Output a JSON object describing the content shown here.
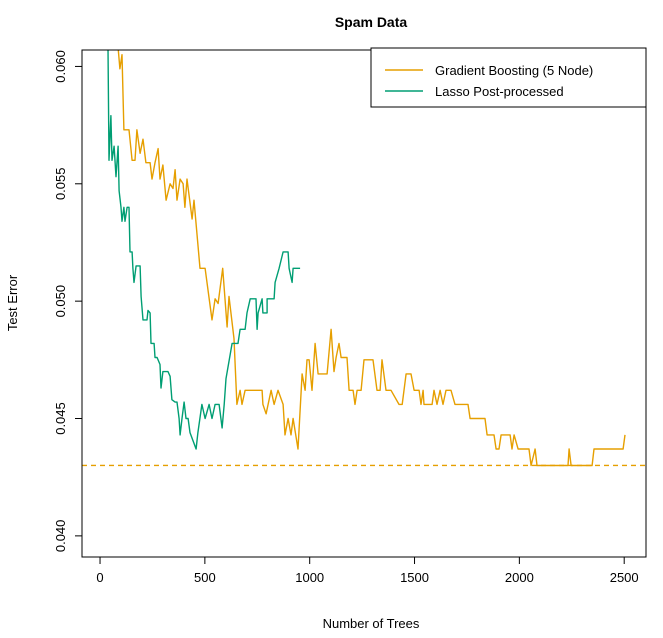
{
  "chart_data": {
    "type": "line",
    "title": "Spam Data",
    "xlabel": "Number of Trees",
    "ylabel": "Test Error",
    "xlim": [
      -86,
      2604
    ],
    "ylim": [
      0.0391,
      0.0607
    ],
    "xticks": [
      0,
      500,
      1000,
      1500,
      2000,
      2500
    ],
    "xtick_labels": [
      "0",
      "500",
      "1000",
      "1500",
      "2000",
      "2500"
    ],
    "yticks": [
      0.04,
      0.045,
      0.05,
      0.055,
      0.06
    ],
    "ytick_labels": [
      "0.040",
      "0.045",
      "0.050",
      "0.055",
      "0.060"
    ],
    "grid": false,
    "legend_position": "top-right",
    "hline": {
      "y": 0.043,
      "color": "#E69F00",
      "style": "dashed"
    },
    "series": [
      {
        "name": "Gradient Boosting (5 Node)",
        "color": "#E69F00",
        "x": [
          86,
          95,
          105,
          114,
          138,
          153,
          167,
          176,
          191,
          205,
          219,
          239,
          248,
          262,
          277,
          286,
          300,
          315,
          334,
          348,
          358,
          367,
          382,
          396,
          405,
          415,
          439,
          448,
          477,
          501,
          534,
          549,
          563,
          585,
          606,
          615,
          639,
          653,
          668,
          677,
          692,
          720,
          773,
          777,
          792,
          816,
          830,
          849,
          873,
          882,
          897,
          911,
          921,
          944,
          964,
          978,
          987,
          997,
          1011,
          1026,
          1040,
          1083,
          1102,
          1116,
          1126,
          1140,
          1150,
          1178,
          1188,
          1207,
          1216,
          1226,
          1245,
          1259,
          1302,
          1321,
          1336,
          1345,
          1364,
          1388,
          1426,
          1441,
          1460,
          1483,
          1498,
          1522,
          1531,
          1541,
          1545,
          1584,
          1593,
          1607,
          1622,
          1636,
          1650,
          1674,
          1693,
          1755,
          1765,
          1836,
          1846,
          1879,
          1889,
          1903,
          1913,
          1956,
          1965,
          1975,
          1994,
          2046,
          2056,
          2075,
          2084,
          2232,
          2237,
          2247,
          2347,
          2356,
          2495,
          2504
        ],
        "y": [
          0.0608,
          0.0599,
          0.0605,
          0.0573,
          0.0573,
          0.056,
          0.056,
          0.0573,
          0.0563,
          0.0569,
          0.0559,
          0.0559,
          0.0552,
          0.0559,
          0.0565,
          0.0552,
          0.0558,
          0.0543,
          0.055,
          0.0548,
          0.0556,
          0.0543,
          0.0552,
          0.055,
          0.054,
          0.0552,
          0.0535,
          0.0543,
          0.0514,
          0.0514,
          0.0492,
          0.0501,
          0.0499,
          0.0514,
          0.0489,
          0.0502,
          0.0484,
          0.0456,
          0.0462,
          0.0456,
          0.0462,
          0.0462,
          0.0462,
          0.0456,
          0.0452,
          0.0462,
          0.0456,
          0.0462,
          0.0456,
          0.0443,
          0.045,
          0.0443,
          0.045,
          0.0437,
          0.0469,
          0.0462,
          0.0475,
          0.0475,
          0.0462,
          0.0482,
          0.0469,
          0.0469,
          0.0488,
          0.047,
          0.0476,
          0.0482,
          0.0476,
          0.0476,
          0.0462,
          0.0462,
          0.0456,
          0.0462,
          0.0462,
          0.0475,
          0.0475,
          0.0462,
          0.0462,
          0.0475,
          0.0462,
          0.0462,
          0.0456,
          0.0456,
          0.0469,
          0.0469,
          0.0462,
          0.0462,
          0.0456,
          0.0462,
          0.0456,
          0.0456,
          0.0462,
          0.0456,
          0.0462,
          0.0456,
          0.0462,
          0.0462,
          0.0456,
          0.0456,
          0.045,
          0.045,
          0.0443,
          0.0443,
          0.0437,
          0.0437,
          0.0443,
          0.0443,
          0.0437,
          0.0443,
          0.0437,
          0.0437,
          0.043,
          0.0437,
          0.043,
          0.043,
          0.0437,
          0.043,
          0.043,
          0.0437,
          0.0437,
          0.0443
        ]
      },
      {
        "name": "Lasso Post-processed",
        "color": "#009E73",
        "x": [
          38,
          43,
          52,
          57,
          67,
          76,
          86,
          91,
          100,
          105,
          114,
          119,
          129,
          138,
          143,
          153,
          157,
          162,
          172,
          191,
          196,
          205,
          224,
          229,
          239,
          243,
          258,
          262,
          272,
          286,
          291,
          300,
          324,
          334,
          343,
          358,
          367,
          377,
          382,
          391,
          401,
          410,
          420,
          429,
          458,
          467,
          486,
          501,
          520,
          534,
          549,
          568,
          582,
          592,
          601,
          630,
          658,
          668,
          692,
          701,
          716,
          744,
          749,
          754,
          773,
          777,
          797,
          797,
          830,
          835,
          854,
          873,
          897,
          902,
          916,
          921,
          954
        ],
        "y": [
          0.0608,
          0.056,
          0.0579,
          0.056,
          0.0566,
          0.0553,
          0.0566,
          0.0547,
          0.054,
          0.0534,
          0.054,
          0.0534,
          0.054,
          0.054,
          0.0521,
          0.0521,
          0.0514,
          0.0508,
          0.0515,
          0.0515,
          0.0502,
          0.0492,
          0.0492,
          0.0496,
          0.0495,
          0.0482,
          0.0482,
          0.0476,
          0.0476,
          0.0473,
          0.0463,
          0.047,
          0.047,
          0.0468,
          0.0458,
          0.0457,
          0.0457,
          0.045,
          0.0443,
          0.045,
          0.0457,
          0.045,
          0.045,
          0.0444,
          0.0437,
          0.0444,
          0.0456,
          0.045,
          0.0456,
          0.045,
          0.0456,
          0.0456,
          0.0446,
          0.0456,
          0.0467,
          0.0482,
          0.0482,
          0.0488,
          0.0488,
          0.0495,
          0.0501,
          0.0501,
          0.0488,
          0.0495,
          0.0501,
          0.0495,
          0.0495,
          0.0501,
          0.0501,
          0.0508,
          0.0514,
          0.0521,
          0.0521,
          0.0514,
          0.0508,
          0.0514,
          0.0514
        ]
      }
    ]
  }
}
